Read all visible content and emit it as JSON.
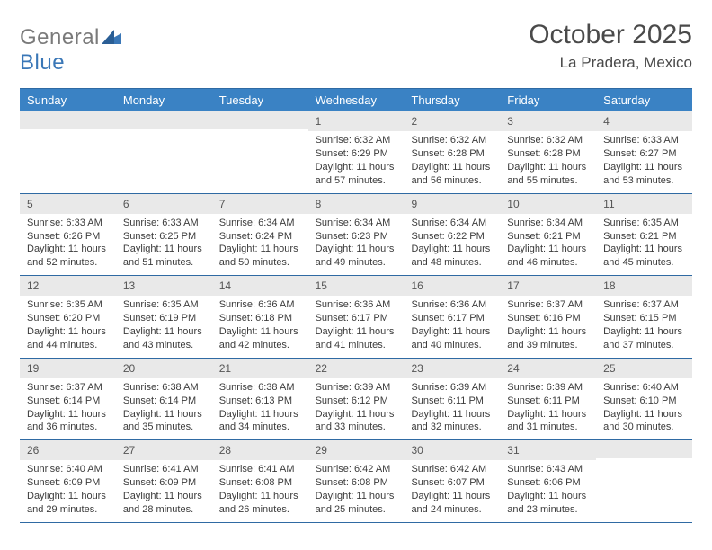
{
  "brand": {
    "name_a": "General",
    "name_b": "Blue"
  },
  "title": "October 2025",
  "location": "La Pradera, Mexico",
  "colors": {
    "header_bg": "#3a82c4",
    "rule": "#2f6aa3",
    "daynum_bg": "#e9e9e9",
    "text": "#3b3b3b"
  },
  "calendar": {
    "type": "table",
    "day_names": [
      "Sunday",
      "Monday",
      "Tuesday",
      "Wednesday",
      "Thursday",
      "Friday",
      "Saturday"
    ],
    "weeks": [
      [
        {
          "n": "",
          "sr": "",
          "ss": "",
          "dl1": "",
          "dl2": ""
        },
        {
          "n": "",
          "sr": "",
          "ss": "",
          "dl1": "",
          "dl2": ""
        },
        {
          "n": "",
          "sr": "",
          "ss": "",
          "dl1": "",
          "dl2": ""
        },
        {
          "n": "1",
          "sr": "Sunrise: 6:32 AM",
          "ss": "Sunset: 6:29 PM",
          "dl1": "Daylight: 11 hours",
          "dl2": "and 57 minutes."
        },
        {
          "n": "2",
          "sr": "Sunrise: 6:32 AM",
          "ss": "Sunset: 6:28 PM",
          "dl1": "Daylight: 11 hours",
          "dl2": "and 56 minutes."
        },
        {
          "n": "3",
          "sr": "Sunrise: 6:32 AM",
          "ss": "Sunset: 6:28 PM",
          "dl1": "Daylight: 11 hours",
          "dl2": "and 55 minutes."
        },
        {
          "n": "4",
          "sr": "Sunrise: 6:33 AM",
          "ss": "Sunset: 6:27 PM",
          "dl1": "Daylight: 11 hours",
          "dl2": "and 53 minutes."
        }
      ],
      [
        {
          "n": "5",
          "sr": "Sunrise: 6:33 AM",
          "ss": "Sunset: 6:26 PM",
          "dl1": "Daylight: 11 hours",
          "dl2": "and 52 minutes."
        },
        {
          "n": "6",
          "sr": "Sunrise: 6:33 AM",
          "ss": "Sunset: 6:25 PM",
          "dl1": "Daylight: 11 hours",
          "dl2": "and 51 minutes."
        },
        {
          "n": "7",
          "sr": "Sunrise: 6:34 AM",
          "ss": "Sunset: 6:24 PM",
          "dl1": "Daylight: 11 hours",
          "dl2": "and 50 minutes."
        },
        {
          "n": "8",
          "sr": "Sunrise: 6:34 AM",
          "ss": "Sunset: 6:23 PM",
          "dl1": "Daylight: 11 hours",
          "dl2": "and 49 minutes."
        },
        {
          "n": "9",
          "sr": "Sunrise: 6:34 AM",
          "ss": "Sunset: 6:22 PM",
          "dl1": "Daylight: 11 hours",
          "dl2": "and 48 minutes."
        },
        {
          "n": "10",
          "sr": "Sunrise: 6:34 AM",
          "ss": "Sunset: 6:21 PM",
          "dl1": "Daylight: 11 hours",
          "dl2": "and 46 minutes."
        },
        {
          "n": "11",
          "sr": "Sunrise: 6:35 AM",
          "ss": "Sunset: 6:21 PM",
          "dl1": "Daylight: 11 hours",
          "dl2": "and 45 minutes."
        }
      ],
      [
        {
          "n": "12",
          "sr": "Sunrise: 6:35 AM",
          "ss": "Sunset: 6:20 PM",
          "dl1": "Daylight: 11 hours",
          "dl2": "and 44 minutes."
        },
        {
          "n": "13",
          "sr": "Sunrise: 6:35 AM",
          "ss": "Sunset: 6:19 PM",
          "dl1": "Daylight: 11 hours",
          "dl2": "and 43 minutes."
        },
        {
          "n": "14",
          "sr": "Sunrise: 6:36 AM",
          "ss": "Sunset: 6:18 PM",
          "dl1": "Daylight: 11 hours",
          "dl2": "and 42 minutes."
        },
        {
          "n": "15",
          "sr": "Sunrise: 6:36 AM",
          "ss": "Sunset: 6:17 PM",
          "dl1": "Daylight: 11 hours",
          "dl2": "and 41 minutes."
        },
        {
          "n": "16",
          "sr": "Sunrise: 6:36 AM",
          "ss": "Sunset: 6:17 PM",
          "dl1": "Daylight: 11 hours",
          "dl2": "and 40 minutes."
        },
        {
          "n": "17",
          "sr": "Sunrise: 6:37 AM",
          "ss": "Sunset: 6:16 PM",
          "dl1": "Daylight: 11 hours",
          "dl2": "and 39 minutes."
        },
        {
          "n": "18",
          "sr": "Sunrise: 6:37 AM",
          "ss": "Sunset: 6:15 PM",
          "dl1": "Daylight: 11 hours",
          "dl2": "and 37 minutes."
        }
      ],
      [
        {
          "n": "19",
          "sr": "Sunrise: 6:37 AM",
          "ss": "Sunset: 6:14 PM",
          "dl1": "Daylight: 11 hours",
          "dl2": "and 36 minutes."
        },
        {
          "n": "20",
          "sr": "Sunrise: 6:38 AM",
          "ss": "Sunset: 6:14 PM",
          "dl1": "Daylight: 11 hours",
          "dl2": "and 35 minutes."
        },
        {
          "n": "21",
          "sr": "Sunrise: 6:38 AM",
          "ss": "Sunset: 6:13 PM",
          "dl1": "Daylight: 11 hours",
          "dl2": "and 34 minutes."
        },
        {
          "n": "22",
          "sr": "Sunrise: 6:39 AM",
          "ss": "Sunset: 6:12 PM",
          "dl1": "Daylight: 11 hours",
          "dl2": "and 33 minutes."
        },
        {
          "n": "23",
          "sr": "Sunrise: 6:39 AM",
          "ss": "Sunset: 6:11 PM",
          "dl1": "Daylight: 11 hours",
          "dl2": "and 32 minutes."
        },
        {
          "n": "24",
          "sr": "Sunrise: 6:39 AM",
          "ss": "Sunset: 6:11 PM",
          "dl1": "Daylight: 11 hours",
          "dl2": "and 31 minutes."
        },
        {
          "n": "25",
          "sr": "Sunrise: 6:40 AM",
          "ss": "Sunset: 6:10 PM",
          "dl1": "Daylight: 11 hours",
          "dl2": "and 30 minutes."
        }
      ],
      [
        {
          "n": "26",
          "sr": "Sunrise: 6:40 AM",
          "ss": "Sunset: 6:09 PM",
          "dl1": "Daylight: 11 hours",
          "dl2": "and 29 minutes."
        },
        {
          "n": "27",
          "sr": "Sunrise: 6:41 AM",
          "ss": "Sunset: 6:09 PM",
          "dl1": "Daylight: 11 hours",
          "dl2": "and 28 minutes."
        },
        {
          "n": "28",
          "sr": "Sunrise: 6:41 AM",
          "ss": "Sunset: 6:08 PM",
          "dl1": "Daylight: 11 hours",
          "dl2": "and 26 minutes."
        },
        {
          "n": "29",
          "sr": "Sunrise: 6:42 AM",
          "ss": "Sunset: 6:08 PM",
          "dl1": "Daylight: 11 hours",
          "dl2": "and 25 minutes."
        },
        {
          "n": "30",
          "sr": "Sunrise: 6:42 AM",
          "ss": "Sunset: 6:07 PM",
          "dl1": "Daylight: 11 hours",
          "dl2": "and 24 minutes."
        },
        {
          "n": "31",
          "sr": "Sunrise: 6:43 AM",
          "ss": "Sunset: 6:06 PM",
          "dl1": "Daylight: 11 hours",
          "dl2": "and 23 minutes."
        },
        {
          "n": "",
          "sr": "",
          "ss": "",
          "dl1": "",
          "dl2": ""
        }
      ]
    ]
  }
}
